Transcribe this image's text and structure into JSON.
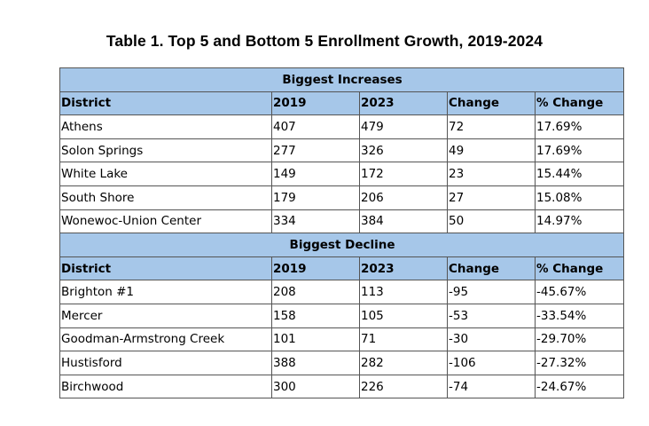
{
  "title": "Table 1. Top 5 and Bottom 5 Enrollment Growth, 2019-2024",
  "columns": [
    "District",
    "2019",
    "2023",
    "Change",
    "% Change"
  ],
  "increases": {
    "heading": "Biggest Increases",
    "rows": [
      [
        "Athens",
        "407",
        "479",
        "72",
        "17.69%"
      ],
      [
        "Solon Springs",
        "277",
        "326",
        "49",
        "17.69%"
      ],
      [
        "White Lake",
        "149",
        "172",
        "23",
        "15.44%"
      ],
      [
        "South Shore",
        "179",
        "206",
        "27",
        "15.08%"
      ],
      [
        "Wonewoc-Union Center",
        "334",
        "384",
        "50",
        "14.97%"
      ]
    ]
  },
  "declines": {
    "heading": "Biggest Decline",
    "rows": [
      [
        "Brighton #1",
        "208",
        "113",
        "-95",
        "-45.67%"
      ],
      [
        "Mercer",
        "158",
        "105",
        "-53",
        "-33.54%"
      ],
      [
        "Goodman-Armstrong Creek",
        "101",
        "71",
        "-30",
        "-29.70%"
      ],
      [
        "Hustisford",
        "388",
        "282",
        "-106",
        "-27.32%"
      ],
      [
        "Birchwood",
        "300",
        "226",
        "-74",
        "-24.67%"
      ]
    ]
  },
  "colors": {
    "header_fill": "#a6c7e9",
    "border": "#555555"
  }
}
